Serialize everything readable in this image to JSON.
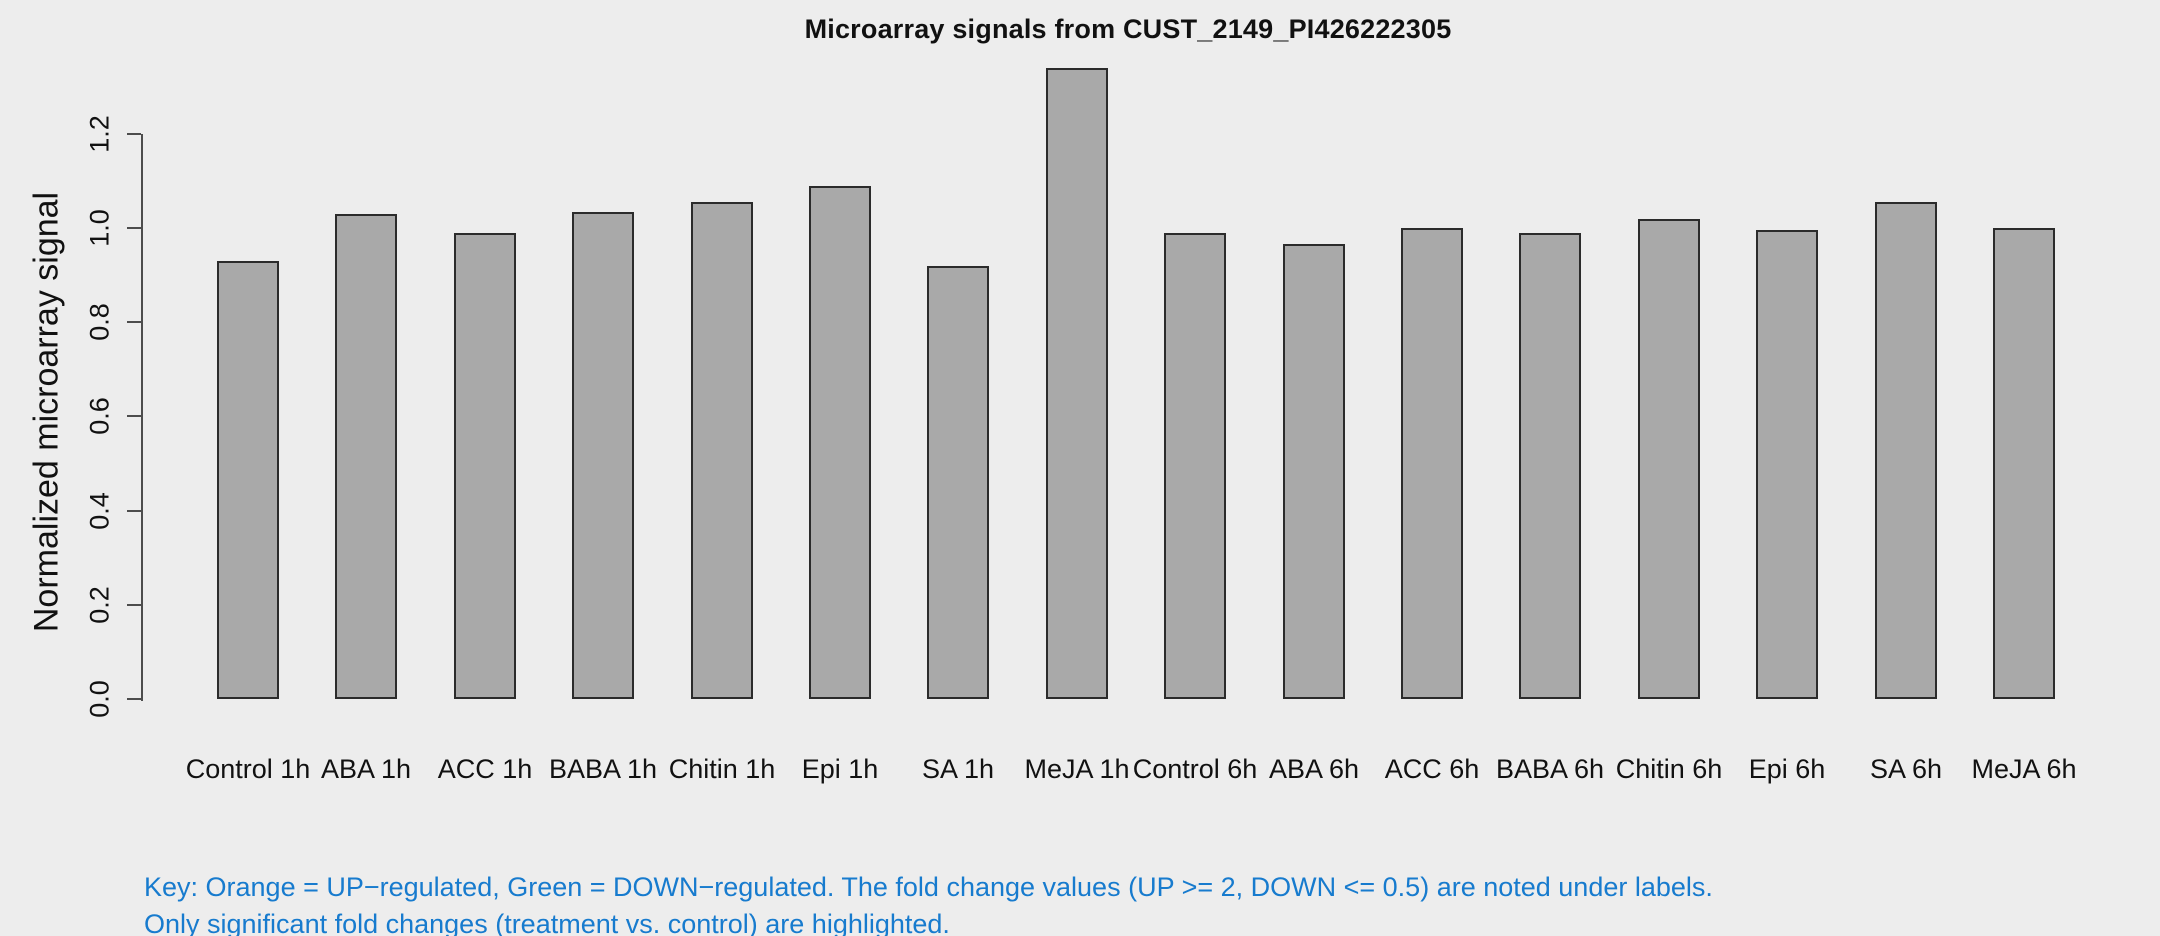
{
  "chart_data": {
    "type": "bar",
    "title": "Microarray signals from CUST_2149_PI426222305",
    "xlabel": "",
    "ylabel": "Normalized microarray signal",
    "categories": [
      "Control 1h",
      "ABA 1h",
      "ACC 1h",
      "BABA 1h",
      "Chitin 1h",
      "Epi 1h",
      "SA 1h",
      "MeJA 1h",
      "Control 6h",
      "ABA 6h",
      "ACC 6h",
      "BABA 6h",
      "Chitin 6h",
      "Epi 6h",
      "SA 6h",
      "MeJA 6h"
    ],
    "values": [
      0.93,
      1.03,
      0.99,
      1.035,
      1.055,
      1.09,
      0.92,
      1.34,
      0.99,
      0.965,
      1.0,
      0.99,
      1.02,
      0.995,
      1.055,
      1.0
    ],
    "y_ticks": [
      0.0,
      0.2,
      0.4,
      0.6,
      0.8,
      1.0,
      1.2
    ],
    "y_tick_labels": [
      "0.0",
      "0.2",
      "0.4",
      "0.6",
      "0.8",
      "1.0",
      "1.2"
    ],
    "ylim": [
      0,
      1.35
    ],
    "grid": false,
    "legend_position": "none",
    "bar_fill_color": "#A9A9A9",
    "bar_border_color": "#2B2B2B"
  },
  "footnote": {
    "line1": "Key: Orange = UP−regulated, Green = DOWN−regulated. The fold change values (UP >= 2, DOWN <= 0.5) are noted under labels.",
    "line2": "Only significant fold changes (treatment vs. control) are highlighted.",
    "text_color": "#177BCE"
  },
  "colors": {
    "background": "#EDEDED",
    "axis": "#4D4D4D",
    "text": "#111111"
  }
}
